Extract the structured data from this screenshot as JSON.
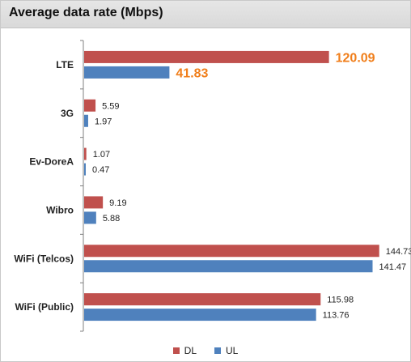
{
  "chart_data": {
    "type": "bar",
    "orientation": "horizontal",
    "title": "Average data rate  (Mbps)",
    "categories": [
      "LTE",
      "3G",
      "Ev-DoreA",
      "Wibro",
      "WiFi (Telcos)",
      "WiFi (Public)"
    ],
    "series": [
      {
        "name": "DL",
        "color": "#c0504d",
        "values": [
          120.09,
          5.59,
          1.07,
          9.19,
          144.73,
          115.98
        ]
      },
      {
        "name": "UL",
        "color": "#4f81bd",
        "values": [
          41.83,
          1.97,
          0.47,
          5.88,
          141.47,
          113.76
        ]
      }
    ],
    "data_labels": {
      "DL": [
        "120.09",
        "5.59",
        "1.07",
        "9.19",
        "144.73",
        "115.98"
      ],
      "UL": [
        "41.83",
        "1.97",
        "0.47",
        "5.88",
        "141.47",
        "113.76"
      ]
    },
    "highlight_category": "LTE",
    "highlight_label_color": "#f07e1a",
    "xlim": [
      0,
      150
    ],
    "grid": false,
    "legend_position": "bottom"
  }
}
